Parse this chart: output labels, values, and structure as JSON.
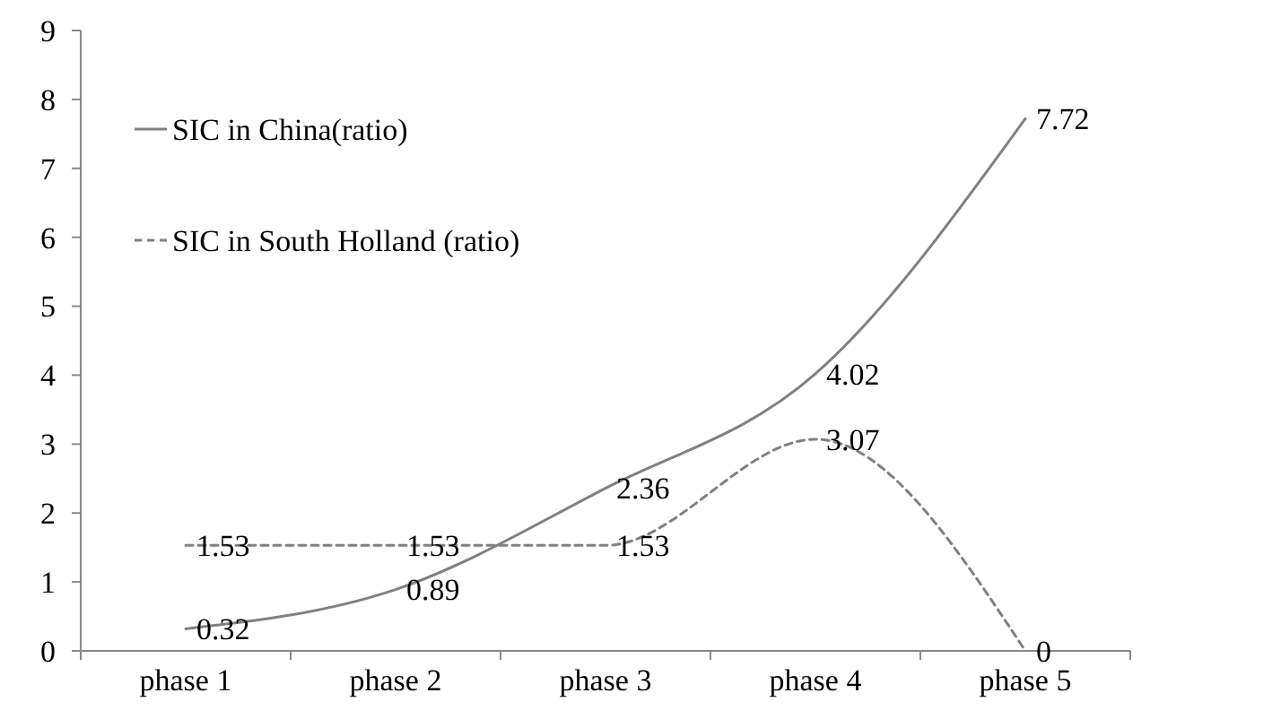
{
  "chart_data": {
    "type": "line",
    "categories": [
      "phase 1",
      "phase 2",
      "phase 3",
      "phase 4",
      "phase 5"
    ],
    "series": [
      {
        "name": "SIC in China(ratio)",
        "color": "#808080",
        "line_style": "solid",
        "values": [
          0.32,
          0.89,
          2.36,
          4.02,
          7.72
        ]
      },
      {
        "name": "SIC in South Holland (ratio)",
        "color": "#808080",
        "line_style": "dashed",
        "values": [
          1.53,
          1.53,
          1.53,
          3.07,
          0
        ]
      }
    ],
    "ylim": [
      0,
      9
    ],
    "yticks": [
      0,
      1,
      2,
      3,
      4,
      5,
      6,
      7,
      8,
      9
    ],
    "grid": false,
    "legend": "top left",
    "marker": "none",
    "data_labels": true
  }
}
